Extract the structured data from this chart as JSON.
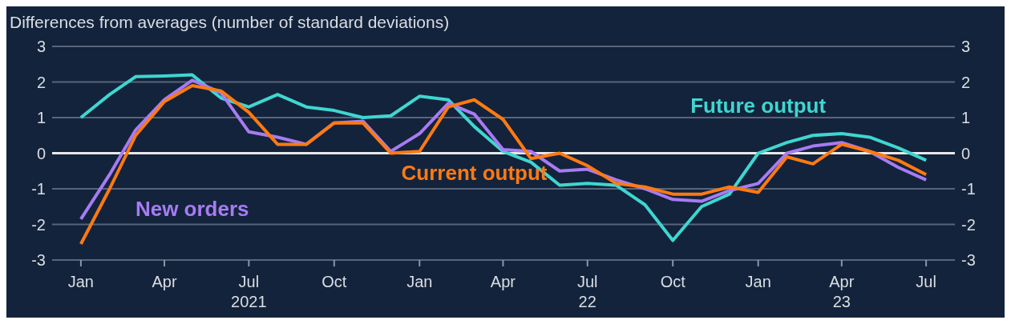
{
  "chart_data": {
    "type": "line",
    "ylabel": "Differences from averages (number of standard deviations)",
    "x": [
      "2021-01",
      "2021-02",
      "2021-03",
      "2021-04",
      "2021-05",
      "2021-06",
      "2021-07",
      "2021-08",
      "2021-09",
      "2021-10",
      "2021-11",
      "2021-12",
      "2022-01",
      "2022-02",
      "2022-03",
      "2022-04",
      "2022-05",
      "2022-06",
      "2022-07",
      "2022-08",
      "2022-09",
      "2022-10",
      "2022-11",
      "2022-12",
      "2023-01",
      "2023-02",
      "2023-03",
      "2023-04",
      "2023-05",
      "2023-06",
      "2023-07"
    ],
    "series": [
      {
        "name": "Future output",
        "color": "#3fd6d0",
        "values": [
          1.0,
          1.65,
          2.15,
          2.17,
          2.2,
          1.55,
          1.3,
          1.65,
          1.3,
          1.2,
          1.0,
          1.05,
          1.6,
          1.5,
          0.75,
          0.05,
          -0.25,
          -0.9,
          -0.85,
          -0.9,
          -1.45,
          -2.45,
          -1.5,
          -1.15,
          0.0,
          0.3,
          0.5,
          0.55,
          0.45,
          0.15,
          -0.2
        ]
      },
      {
        "name": "New orders",
        "color": "#a77bf3",
        "values": [
          -1.85,
          -0.6,
          0.65,
          1.5,
          2.05,
          1.7,
          0.6,
          0.45,
          0.25,
          0.85,
          0.9,
          0.05,
          0.55,
          1.4,
          1.1,
          0.1,
          0.05,
          -0.5,
          -0.45,
          -0.75,
          -1.0,
          -1.3,
          -1.35,
          -1.05,
          -0.85,
          0.0,
          0.2,
          0.3,
          0.05,
          -0.4,
          -0.75
        ]
      },
      {
        "name": "Current output",
        "color": "#ff7a12",
        "values": [
          -2.55,
          -1.0,
          0.5,
          1.45,
          1.9,
          1.75,
          1.15,
          0.25,
          0.25,
          0.85,
          0.85,
          0.0,
          0.05,
          1.3,
          1.5,
          0.95,
          -0.15,
          0.0,
          -0.35,
          -0.85,
          -0.95,
          -1.15,
          -1.15,
          -0.95,
          -1.1,
          -0.1,
          -0.3,
          0.25,
          0.05,
          -0.2,
          -0.6
        ]
      }
    ],
    "xlim": [
      "2020-12",
      "2023-08"
    ],
    "xticks": [
      {
        "value": "2021-01",
        "label": "Jan"
      },
      {
        "value": "2021-04",
        "label": "Apr"
      },
      {
        "value": "2021-07",
        "label": "Jul\n2021"
      },
      {
        "value": "2021-10",
        "label": "Oct"
      },
      {
        "value": "2022-01",
        "label": "Jan"
      },
      {
        "value": "2022-04",
        "label": "Apr"
      },
      {
        "value": "2022-07",
        "label": "Jul\n22"
      },
      {
        "value": "2022-10",
        "label": "Oct"
      },
      {
        "value": "2023-01",
        "label": "Jan"
      },
      {
        "value": "2023-04",
        "label": "Apr\n23"
      },
      {
        "value": "2023-07",
        "label": "Jul"
      }
    ],
    "ylim": [
      -3,
      3
    ],
    "yticks": [
      -3,
      -2,
      -1,
      0,
      1,
      2,
      3
    ],
    "y2lim": [
      -3,
      3
    ],
    "y2ticks": [
      -3,
      -2,
      -1,
      0,
      1,
      2,
      3
    ],
    "ref_lines": [
      {
        "axis": "y",
        "value": 0,
        "color": "#e8e8e8"
      }
    ],
    "grid": "y",
    "line_style": "solid",
    "marker": "none"
  }
}
